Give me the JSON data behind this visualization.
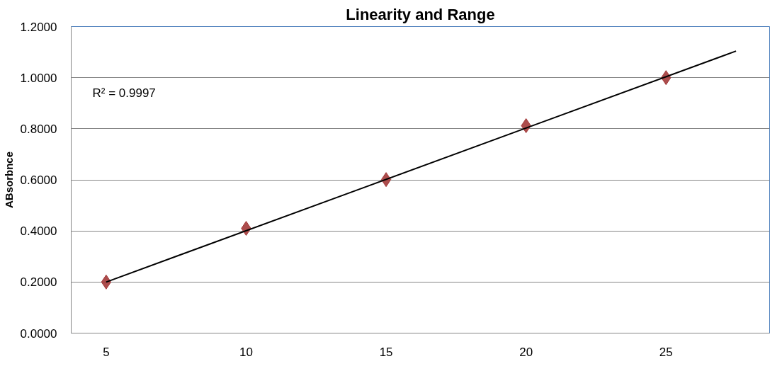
{
  "chart_data": {
    "type": "scatter",
    "title": "Linearity and Range",
    "ylabel": "ABsorbnce",
    "x": [
      5,
      10,
      15,
      20,
      25
    ],
    "series": [
      {
        "color": "#a33a3a",
        "values": [
          0.2,
          0.41,
          0.601,
          0.812,
          1.0
        ]
      },
      {
        "type": "line",
        "color": "#000000",
        "x": [
          5,
          27.5
        ],
        "values": [
          0.2,
          1.104
        ],
        "marker": "none"
      }
    ],
    "xlim": [
      3.75,
      28.7
    ],
    "xticks": [
      5,
      10,
      15,
      20,
      25
    ],
    "ylim": [
      0,
      1.2
    ],
    "yticks": [
      {
        "value": 0,
        "label": "0.0000"
      },
      {
        "value": 0.2,
        "label": "0.2000"
      },
      {
        "value": 0.4,
        "label": "0.4000"
      },
      {
        "value": 0.6,
        "label": "0.6000"
      },
      {
        "value": 0.8,
        "label": "0.8000"
      },
      {
        "value": 1.0,
        "label": "1.0000"
      },
      {
        "value": 1.2,
        "label": "1.2000"
      }
    ],
    "grid": "y",
    "marker": "diamond",
    "line_style": "solid",
    "annotations": [
      "R² = 0.9997"
    ]
  }
}
